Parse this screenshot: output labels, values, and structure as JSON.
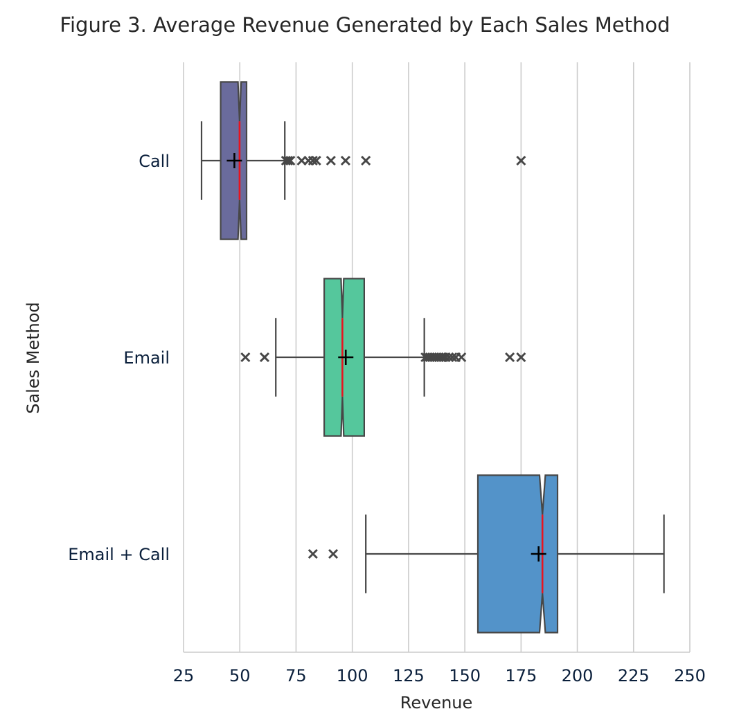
{
  "chart_data": {
    "type": "boxplot",
    "orientation": "horizontal",
    "notched": true,
    "title": "Figure 3. Average Revenue Generated by Each Sales Method",
    "xlabel": "Revenue",
    "ylabel": "Sales Method",
    "xlim": [
      25,
      250
    ],
    "xticks": [
      "25",
      "50",
      "75",
      "100",
      "125",
      "150",
      "175",
      "200",
      "225",
      "250"
    ],
    "xtick_values": [
      25,
      50,
      75,
      100,
      125,
      150,
      175,
      200,
      225,
      250
    ],
    "grid": "vertical",
    "categories": [
      "Call",
      "Email",
      "Email + Call"
    ],
    "boxes": [
      {
        "name": "Call",
        "color": "#6a6b9c",
        "whisker_low": 33,
        "q1": 41.5,
        "median": 49.9,
        "q3": 53,
        "whisker_high": 70,
        "notch_low": 49.2,
        "notch_high": 50.6,
        "mean": 47.6,
        "outliers": [
          70.5,
          71.5,
          72.5,
          77.5,
          80.5,
          82.5,
          84,
          90.5,
          97,
          106,
          175
        ]
      },
      {
        "name": "Email",
        "color": "#55c79c",
        "whisker_low": 66,
        "q1": 87.5,
        "median": 95.6,
        "q3": 105.3,
        "whisker_high": 132,
        "notch_low": 95,
        "notch_high": 96.2,
        "mean": 97.1,
        "outliers": [
          52.5,
          61,
          132.5,
          133.5,
          134.5,
          135.5,
          136.5,
          137.5,
          138.5,
          139.5,
          140.5,
          141.5,
          143,
          144.5,
          146,
          148.5,
          170,
          175
        ]
      },
      {
        "name": "Email + Call",
        "color": "#5393c9",
        "whisker_low": 106,
        "q1": 155.8,
        "median": 184.5,
        "q3": 191.2,
        "whisker_high": 238.5,
        "notch_low": 183.2,
        "notch_high": 185.8,
        "mean": 182.8,
        "outliers": [
          82.5,
          91.5
        ]
      }
    ],
    "median_color": "#e8141f",
    "mean_marker": "plus",
    "outlier_marker": "x"
  }
}
